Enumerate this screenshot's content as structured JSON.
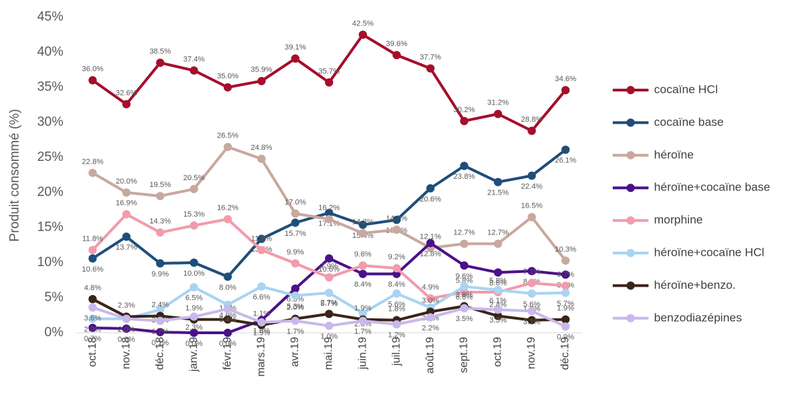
{
  "chart_data": {
    "type": "line",
    "y_label": "Produit consommé (%)",
    "categories": [
      "oct.18",
      "nov.18",
      "déc.18",
      "janv.19",
      "févr.19",
      "mars.19",
      "avr.19",
      "mai.19",
      "juin.19",
      "juil.19",
      "août.19",
      "sept.19",
      "oct.19",
      "nov.19",
      "déc.19"
    ],
    "ylim": [
      0,
      45
    ],
    "yticks": [
      {
        "value": 0,
        "label": "0%"
      },
      {
        "value": 5,
        "label": "5%"
      },
      {
        "value": 10,
        "label": "10%"
      },
      {
        "value": 15,
        "label": "15%"
      },
      {
        "value": 20,
        "label": "20%"
      },
      {
        "value": 25,
        "label": "25%"
      },
      {
        "value": 30,
        "label": "30%"
      },
      {
        "value": 35,
        "label": "35%"
      },
      {
        "value": 40,
        "label": "40%"
      },
      {
        "value": 45,
        "label": "45%"
      }
    ],
    "legend": "right",
    "series": [
      {
        "name": "cocaïne HCl",
        "color": "#a50f2b",
        "values": [
          36.0,
          32.6,
          38.5,
          37.4,
          35.0,
          35.9,
          39.1,
          35.7,
          42.5,
          39.6,
          37.7,
          30.2,
          31.2,
          28.8,
          34.6
        ],
        "value_labels": [
          "36.0%",
          "32.6%",
          "38.5%",
          "37.4%",
          "35.0%",
          "35.9%",
          "39.1%",
          "35.7%",
          "42.5%",
          "39.6%",
          "37.7%",
          "30.2%",
          "31.2%",
          "28.8%",
          "34.6%"
        ]
      },
      {
        "name": "cocaïne base",
        "color": "#1f4e79",
        "values": [
          10.6,
          13.7,
          9.9,
          10.0,
          8.0,
          13.4,
          15.7,
          17.1,
          15.4,
          16.1,
          20.6,
          23.8,
          21.5,
          22.4,
          26.1
        ],
        "value_labels": [
          "10.6%",
          "13.7%",
          "9.9%",
          "10.0%",
          "8.0%",
          "13.4%",
          "15.7%",
          "17.1%",
          "15.4%",
          "16.1%",
          "20.6%",
          "23.8%",
          "21.5%",
          "22.4%",
          "26.1%"
        ]
      },
      {
        "name": "héroïne",
        "color": "#c8a89f",
        "values": [
          22.8,
          20.0,
          19.5,
          20.5,
          26.5,
          24.8,
          17.0,
          16.2,
          14.2,
          14.7,
          12.1,
          12.7,
          12.7,
          16.5,
          10.3
        ],
        "value_labels": [
          "22.8%",
          "20.0%",
          "19.5%",
          "20.5%",
          "26.5%",
          "24.8%",
          "17.0%",
          "16.2%",
          "14.2%",
          "14.7%",
          "12.1%",
          "12.7%",
          "12.7%",
          "16.5%",
          "10.3%"
        ]
      },
      {
        "name": "héroïne+cocaïne base",
        "color": "#4b118a",
        "values": [
          0.7,
          0.6,
          0.1,
          0.0,
          0.0,
          1.8,
          6.3,
          10.6,
          8.4,
          8.4,
          12.8,
          9.6,
          8.6,
          8.8,
          8.3
        ],
        "value_labels": [
          "0.7%",
          "0.6%",
          "0.1%",
          "0.0%",
          "0.0%",
          "1.8%",
          "6.3%",
          "10.6%",
          "8.4%",
          "8.4%",
          "12.8%",
          "9.6%",
          "8.6%",
          "8.8%",
          "8.3%"
        ]
      },
      {
        "name": "morphine",
        "color": "#f29bab",
        "values": [
          11.8,
          16.9,
          14.3,
          15.3,
          16.2,
          11.8,
          9.9,
          7.9,
          9.6,
          9.2,
          4.9,
          5.8,
          5.8,
          7.1,
          6.7
        ],
        "value_labels": [
          "11.8%",
          "16.9%",
          "14.3%",
          "15.3%",
          "16.2%",
          "11.8%",
          "9.9%",
          "7.9%",
          "9.6%",
          "9.2%",
          "4.9%",
          "5.8%",
          "5.8%",
          "7.1%",
          "6.7%"
        ]
      },
      {
        "name": "héroïne+cocaïne HCl",
        "color": "#a9d4f2",
        "values": [
          2.0,
          2.0,
          3.3,
          6.5,
          4.0,
          6.6,
          5.3,
          5.7,
          2.8,
          5.6,
          3.6,
          6.6,
          6.1,
          5.6,
          5.7
        ],
        "value_labels": [
          "2.0%",
          "2.0%",
          "3.3%",
          "6.5%",
          "4.0%",
          "6.6%",
          "5.3%",
          "5.7%",
          "2.8%",
          "5.6%",
          "3.6%",
          "6.6%",
          "6.1%",
          "5.6%",
          "5.7%"
        ]
      },
      {
        "name": "héroïne+benzo.",
        "color": "#3b2418",
        "values": [
          4.8,
          2.3,
          2.4,
          1.9,
          1.9,
          1.1,
          2.0,
          2.7,
          1.9,
          1.8,
          3.0,
          3.8,
          2.4,
          1.8,
          1.9
        ],
        "value_labels": [
          "4.8%",
          "2.3%",
          "2.4%",
          "1.9%",
          "1.9%",
          "1.1%",
          "2.0%",
          "2.7%",
          "1.9%",
          "1.8%",
          "3.0%",
          "3.8%",
          "2.4%",
          "1.8%",
          "1.9%"
        ]
      },
      {
        "name": "benzodiazépines",
        "color": "#c9b8ec",
        "values": [
          3.6,
          2.0,
          1.7,
          2.3,
          3.4,
          1.5,
          1.7,
          1.0,
          1.7,
          1.2,
          2.2,
          3.5,
          3.3,
          3.1,
          0.9
        ],
        "value_labels": [
          "3.6%",
          "2.0%",
          "1.7%",
          "2.3%",
          "3.4%",
          "1.5%",
          "1.7%",
          "1.0%",
          "1.7%",
          "1.2%",
          "2.2%",
          "3.5%",
          "3.3%",
          "3.1%",
          "0.9%"
        ]
      }
    ]
  }
}
